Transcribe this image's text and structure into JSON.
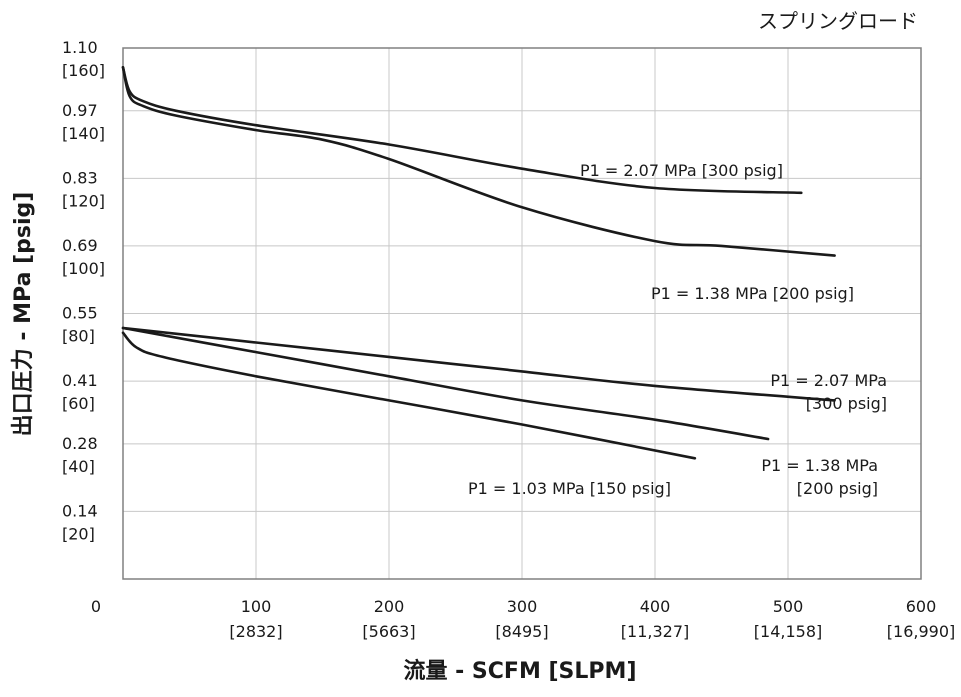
{
  "chart_data": {
    "type": "line",
    "title": "スプリングロード",
    "xlabel": "流量 - SCFM [SLPM]",
    "ylabel": "出口圧力 - MPa [psig]",
    "xlim": [
      0,
      600
    ],
    "ylim": [
      0,
      1.1
    ],
    "grid": true,
    "x_ticks": [
      {
        "value": 0,
        "label": "0",
        "sub": ""
      },
      {
        "value": 100,
        "label": "100",
        "sub": "[2832]"
      },
      {
        "value": 200,
        "label": "200",
        "sub": "[5663]"
      },
      {
        "value": 300,
        "label": "300",
        "sub": "[8495]"
      },
      {
        "value": 400,
        "label": "400",
        "sub": "[11,327]"
      },
      {
        "value": 500,
        "label": "500",
        "sub": "[14,158]"
      },
      {
        "value": 600,
        "label": "600",
        "sub": "[16,990]"
      }
    ],
    "y_ticks": [
      {
        "value": 1.1,
        "label": "1.10",
        "sub": "[160]"
      },
      {
        "value": 0.97,
        "label": "0.97",
        "sub": "[140]"
      },
      {
        "value": 0.83,
        "label": "0.83",
        "sub": "[120]"
      },
      {
        "value": 0.69,
        "label": "0.69",
        "sub": "[100]"
      },
      {
        "value": 0.55,
        "label": "0.55",
        "sub": "[80]"
      },
      {
        "value": 0.41,
        "label": "0.41",
        "sub": "[60]"
      },
      {
        "value": 0.28,
        "label": "0.28",
        "sub": "[40]"
      },
      {
        "value": 0.14,
        "label": "0.14",
        "sub": "[20]"
      }
    ],
    "series": [
      {
        "name": "P1 = 2.07 MPa [300 psig]",
        "label_lines": [
          "P1 = 2.07 MPa [300 psig]"
        ],
        "x": [
          0,
          5,
          15,
          40,
          100,
          200,
          300,
          400,
          510
        ],
        "y": [
          1.06,
          1.01,
          0.99,
          0.97,
          0.94,
          0.9,
          0.85,
          0.81,
          0.8
        ]
      },
      {
        "name": "P1 = 1.38 MPa [200 psig]",
        "label_lines": [
          "P1 = 1.38 MPa [200 psig]"
        ],
        "x": [
          0,
          5,
          15,
          40,
          100,
          150,
          200,
          300,
          400,
          450,
          535
        ],
        "y": [
          1.06,
          1.0,
          0.98,
          0.96,
          0.93,
          0.91,
          0.87,
          0.77,
          0.7,
          0.69,
          0.67
        ]
      },
      {
        "name": "P1 = 2.07 MPa [300 psig]",
        "label_lines": [
          "P1 = 2.07 MPa",
          "[300 psig]"
        ],
        "x": [
          0,
          100,
          200,
          300,
          400,
          535
        ],
        "y": [
          0.52,
          0.49,
          0.46,
          0.43,
          0.4,
          0.37
        ]
      },
      {
        "name": "P1 = 1.38 MPa [200 psig]",
        "label_lines": [
          "P1 = 1.38 MPa",
          "[200 psig]"
        ],
        "x": [
          0,
          100,
          200,
          300,
          400,
          485
        ],
        "y": [
          0.52,
          0.47,
          0.42,
          0.37,
          0.33,
          0.29
        ]
      },
      {
        "name": "P1 = 1.03 MPa [150 psig]",
        "label_lines": [
          "P1 = 1.03 MPa [150 psig]"
        ],
        "x": [
          0,
          10,
          30,
          100,
          200,
          300,
          430
        ],
        "y": [
          0.51,
          0.48,
          0.46,
          0.42,
          0.37,
          0.32,
          0.25
        ]
      }
    ]
  }
}
